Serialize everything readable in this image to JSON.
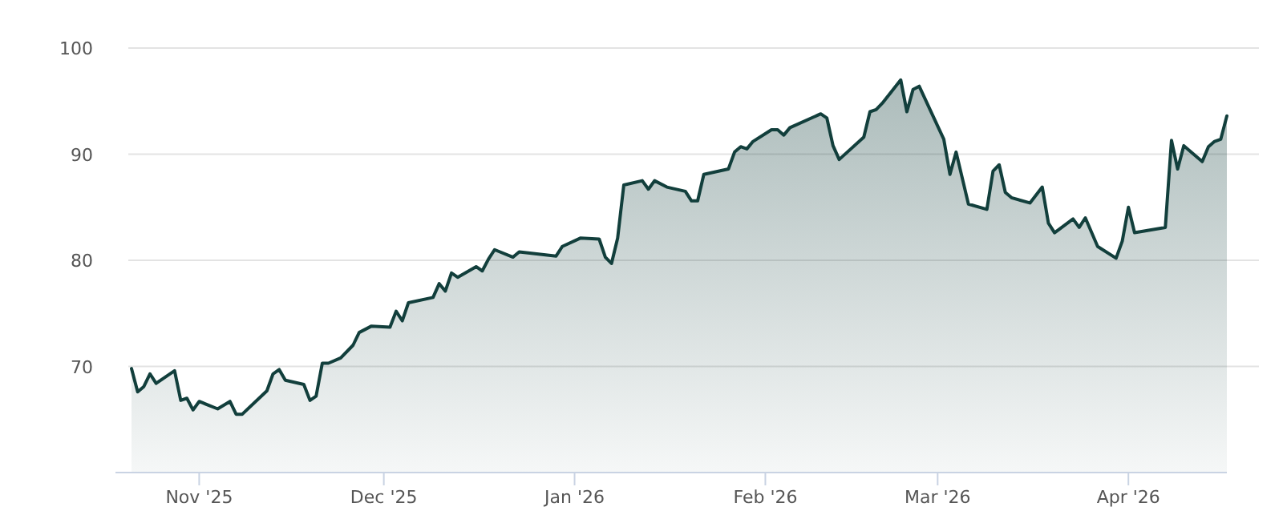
{
  "chart_data": {
    "type": "area",
    "x": [
      "2025-10-21",
      "2025-10-22",
      "2025-10-23",
      "2025-10-24",
      "2025-10-25",
      "2025-10-28",
      "2025-10-29",
      "2025-10-30",
      "2025-10-31",
      "2025-11-01",
      "2025-11-04",
      "2025-11-06",
      "2025-11-07",
      "2025-11-08",
      "2025-11-12",
      "2025-11-13",
      "2025-11-14",
      "2025-11-15",
      "2025-11-18",
      "2025-11-19",
      "2025-11-20",
      "2025-11-21",
      "2025-11-22",
      "2025-11-24",
      "2025-11-26",
      "2025-11-27",
      "2025-11-29",
      "2025-12-02",
      "2025-12-03",
      "2025-12-04",
      "2025-12-05",
      "2025-12-09",
      "2025-12-10",
      "2025-12-11",
      "2025-12-12",
      "2025-12-13",
      "2025-12-16",
      "2025-12-17",
      "2025-12-18",
      "2025-12-19",
      "2025-12-22",
      "2025-12-23",
      "2025-12-29",
      "2025-12-30",
      "2026-01-02",
      "2026-01-05",
      "2026-01-06",
      "2026-01-07",
      "2026-01-08",
      "2026-01-09",
      "2026-01-12",
      "2026-01-13",
      "2026-01-14",
      "2026-01-16",
      "2026-01-19",
      "2026-01-20",
      "2026-01-21",
      "2026-01-22",
      "2026-01-26",
      "2026-01-27",
      "2026-01-28",
      "2026-01-29",
      "2026-01-30",
      "2026-02-02",
      "2026-02-03",
      "2026-02-04",
      "2026-02-05",
      "2026-02-10",
      "2026-02-11",
      "2026-02-12",
      "2026-02-13",
      "2026-02-17",
      "2026-02-18",
      "2026-02-19",
      "2026-02-20",
      "2026-02-23",
      "2026-02-24",
      "2026-02-25",
      "2026-02-26",
      "2026-03-02",
      "2026-03-03",
      "2026-03-04",
      "2026-03-06",
      "2026-03-09",
      "2026-03-10",
      "2026-03-11",
      "2026-03-12",
      "2026-03-13",
      "2026-03-16",
      "2026-03-18",
      "2026-03-19",
      "2026-03-20",
      "2026-03-23",
      "2026-03-24",
      "2026-03-25",
      "2026-03-27",
      "2026-03-30",
      "2026-03-31",
      "2026-04-01",
      "2026-04-02",
      "2026-04-07",
      "2026-04-08",
      "2026-04-09",
      "2026-04-10",
      "2026-04-13",
      "2026-04-14",
      "2026-04-15",
      "2026-04-16",
      "2026-04-17"
    ],
    "series": [
      {
        "color": "#123f3c",
        "values": [
          69.8,
          67.6,
          68.1,
          69.3,
          68.4,
          69.6,
          66.8,
          67.0,
          65.9,
          66.7,
          66.0,
          66.7,
          65.5,
          65.5,
          67.7,
          69.3,
          69.7,
          68.7,
          68.3,
          66.8,
          67.2,
          70.3,
          70.3,
          70.8,
          72.0,
          73.2,
          73.8,
          73.7,
          75.2,
          74.3,
          76.0,
          76.5,
          77.8,
          77.1,
          78.8,
          78.4,
          79.4,
          79.0,
          80.1,
          81.0,
          80.3,
          80.8,
          80.4,
          81.3,
          82.1,
          82.0,
          80.3,
          79.7,
          82.1,
          87.1,
          87.5,
          86.7,
          87.5,
          86.9,
          86.5,
          85.6,
          85.6,
          88.1,
          88.6,
          90.2,
          90.7,
          90.5,
          91.2,
          92.3,
          92.3,
          91.8,
          92.5,
          93.8,
          93.4,
          90.8,
          89.5,
          91.6,
          94.0,
          94.2,
          94.8,
          97.0,
          94.0,
          96.1,
          96.4,
          91.4,
          88.1,
          90.2,
          85.3,
          84.8,
          88.4,
          89.0,
          86.4,
          85.9,
          85.4,
          86.9,
          83.5,
          82.6,
          83.9,
          83.1,
          84.0,
          81.3,
          80.2,
          81.8,
          85.0,
          82.6,
          83.1,
          91.3,
          88.6,
          90.8,
          89.3,
          90.7,
          91.2,
          91.4,
          93.6
        ]
      }
    ],
    "xlim": [
      "2025-10-21",
      "2026-04-17"
    ],
    "xticks": [
      {
        "value": "2025-11-01",
        "label": "Nov '25"
      },
      {
        "value": "2025-12-01",
        "label": "Dec '25"
      },
      {
        "value": "2026-01-01",
        "label": "Jan '26"
      },
      {
        "value": "2026-02-01",
        "label": "Feb '26"
      },
      {
        "value": "2026-03-01",
        "label": "Mar '26"
      },
      {
        "value": "2026-04-01",
        "label": "Apr '26"
      }
    ],
    "ylim": [
      60,
      100
    ],
    "yticks": [
      70,
      80,
      90,
      100
    ],
    "grid": "y",
    "line_style": "solid"
  }
}
